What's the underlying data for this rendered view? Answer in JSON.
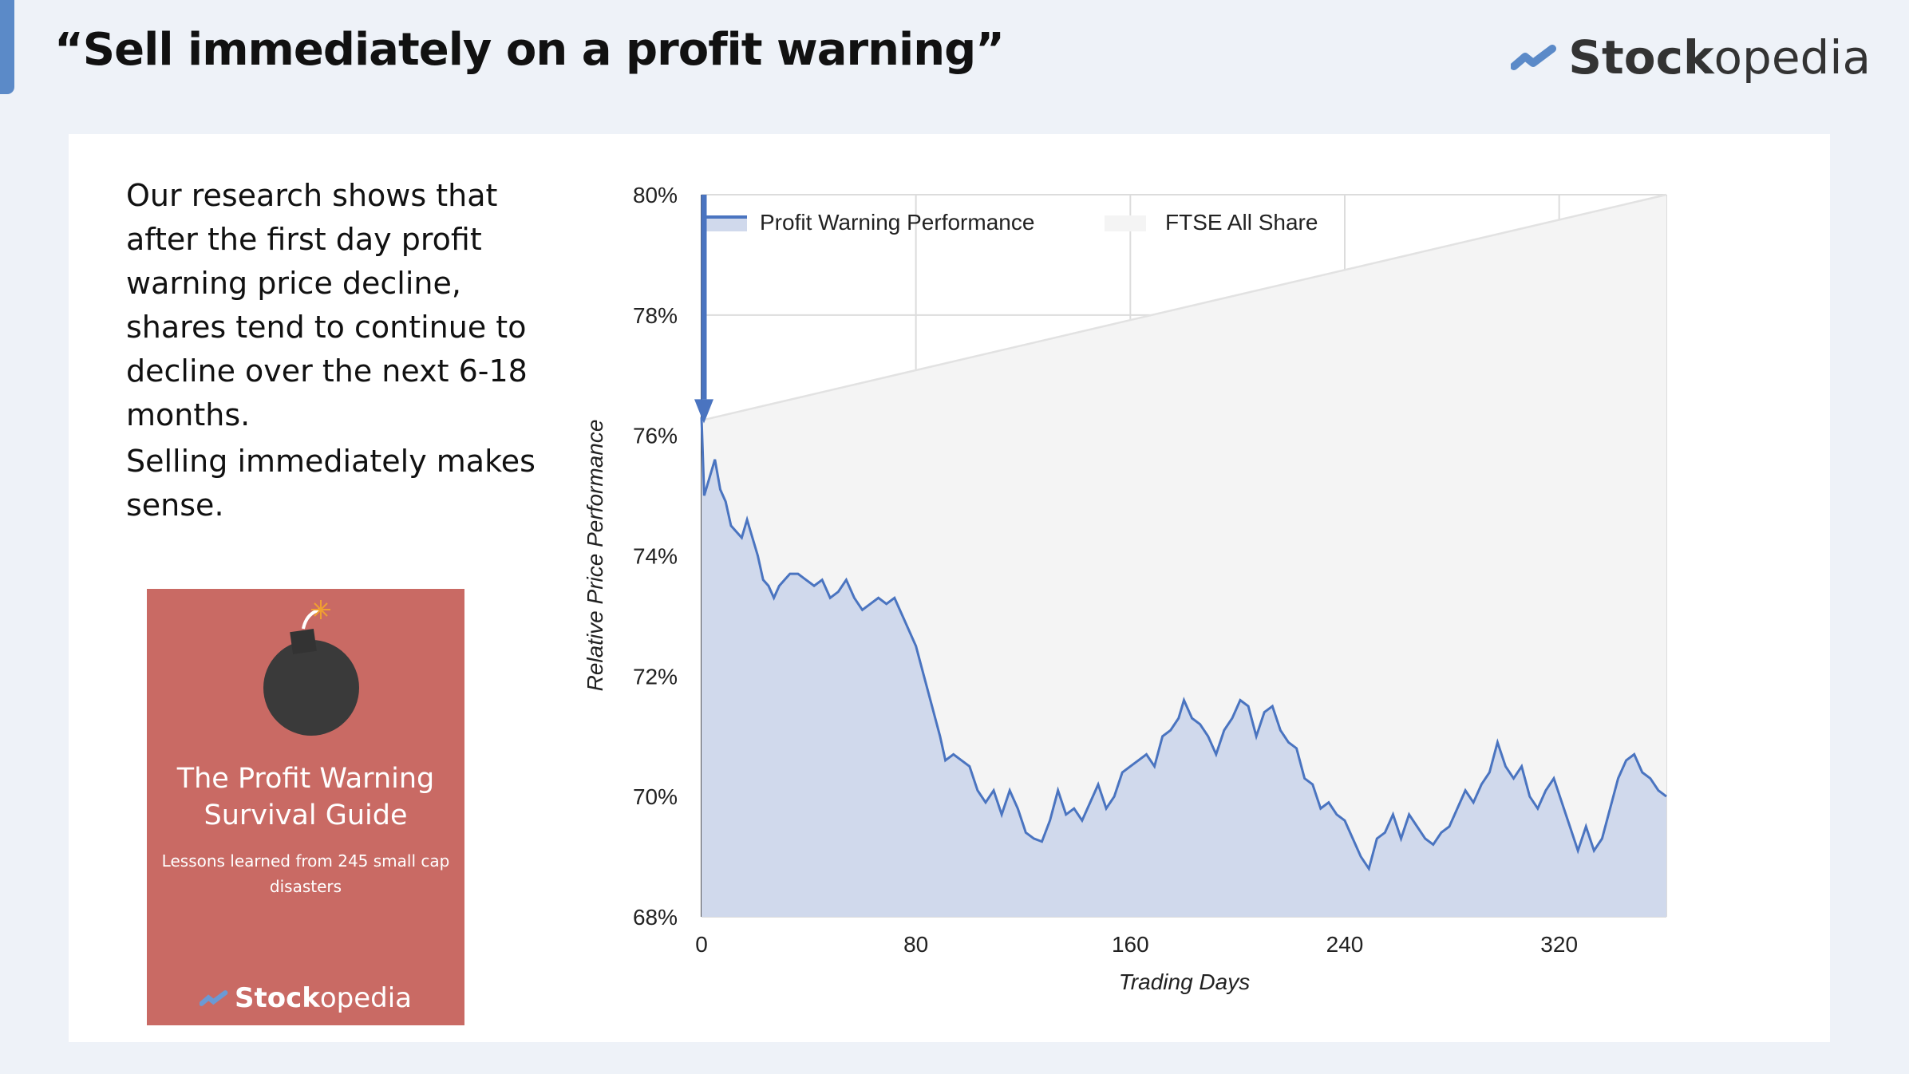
{
  "slide": {
    "title": "“Sell immediately on a profit warning”",
    "logo": {
      "bold": "Stock",
      "light": "opedia"
    },
    "paragraphs": [
      "Our research shows that after the first day profit warning price decline, shares tend to continue to decline over the next 6-18 months.",
      "Selling immediately makes sense."
    ],
    "book": {
      "title": "The Profit Warning Survival Guide",
      "subtitle": "Lessons learned from 245 small cap disasters",
      "logo_bold": "Stock",
      "logo_light": "opedia",
      "color": "#c96a64",
      "icon": "bomb-icon"
    },
    "accent_color": "#5b8ac8"
  },
  "chart_data": {
    "type": "area",
    "xlabel": "Trading Days",
    "ylabel": "Relative Price Performance",
    "xlim": [
      0,
      360
    ],
    "ylim": [
      68,
      80
    ],
    "xticks": [
      "0",
      "80",
      "160",
      "240",
      "320"
    ],
    "xtick_values": [
      0,
      80,
      160,
      240,
      320
    ],
    "yticks": [
      "68%",
      "70%",
      "72%",
      "74%",
      "76%",
      "78%",
      "80%"
    ],
    "ytick_values": [
      68,
      70,
      72,
      74,
      76,
      78,
      80
    ],
    "grid": true,
    "legend_placement": "top-left",
    "annotation": "arrow down at day 0 from 80% to 76.3%",
    "series": [
      {
        "name": "Profit Warning Performance",
        "color": "#4a74c0",
        "fill": "#d0d9ec",
        "x": [
          0,
          1,
          3,
          5,
          7,
          9,
          11,
          13,
          15,
          17,
          19,
          21,
          23,
          25,
          27,
          29,
          31,
          33,
          36,
          39,
          42,
          45,
          48,
          51,
          54,
          57,
          60,
          63,
          66,
          69,
          72,
          75,
          78,
          80,
          83,
          86,
          89,
          91,
          94,
          97,
          100,
          103,
          106,
          109,
          112,
          115,
          118,
          121,
          124,
          127,
          130,
          133,
          136,
          139,
          142,
          145,
          148,
          151,
          154,
          157,
          160,
          163,
          166,
          169,
          172,
          175,
          178,
          180,
          183,
          186,
          189,
          192,
          195,
          198,
          201,
          204,
          207,
          210,
          213,
          216,
          219,
          222,
          225,
          228,
          231,
          234,
          237,
          240,
          243,
          246,
          249,
          252,
          255,
          258,
          261,
          264,
          267,
          270,
          273,
          276,
          279,
          282,
          285,
          288,
          291,
          294,
          297,
          300,
          303,
          306,
          309,
          312,
          315,
          318,
          321,
          324,
          327,
          330,
          333,
          336,
          339,
          342,
          345,
          348,
          351,
          354,
          357,
          360
        ],
        "y": [
          76.3,
          75.0,
          75.3,
          75.6,
          75.1,
          74.9,
          74.5,
          74.4,
          74.3,
          74.6,
          74.3,
          74.0,
          73.6,
          73.5,
          73.3,
          73.5,
          73.6,
          73.7,
          73.7,
          73.6,
          73.5,
          73.6,
          73.3,
          73.4,
          73.6,
          73.3,
          73.1,
          73.2,
          73.3,
          73.2,
          73.3,
          73.0,
          72.7,
          72.5,
          72.0,
          71.5,
          71.0,
          70.6,
          70.7,
          70.6,
          70.5,
          70.1,
          69.9,
          70.1,
          69.7,
          70.1,
          69.8,
          69.4,
          69.3,
          69.25,
          69.6,
          70.1,
          69.7,
          69.8,
          69.6,
          69.9,
          70.2,
          69.8,
          70.0,
          70.4,
          70.5,
          70.6,
          70.7,
          70.5,
          71.0,
          71.1,
          71.3,
          71.6,
          71.3,
          71.2,
          71.0,
          70.7,
          71.1,
          71.3,
          71.6,
          71.5,
          71.0,
          71.4,
          71.5,
          71.1,
          70.9,
          70.8,
          70.3,
          70.2,
          69.8,
          69.9,
          69.7,
          69.6,
          69.3,
          69.0,
          68.8,
          69.3,
          69.4,
          69.7,
          69.3,
          69.7,
          69.5,
          69.3,
          69.2,
          69.4,
          69.5,
          69.8,
          70.1,
          69.9,
          70.2,
          70.4,
          70.9,
          70.5,
          70.3,
          70.5,
          70.0,
          69.8,
          70.1,
          70.3,
          69.9,
          69.5,
          69.1,
          69.5,
          69.1,
          69.3,
          69.8,
          70.3,
          70.6,
          70.7,
          70.4,
          70.3,
          70.1,
          70.0
        ]
      },
      {
        "name": "FTSE All Share",
        "color": "#e2e2e2",
        "fill": "#f4f4f4",
        "x": [
          0,
          360
        ],
        "y": [
          76.25,
          80.0
        ]
      }
    ]
  }
}
